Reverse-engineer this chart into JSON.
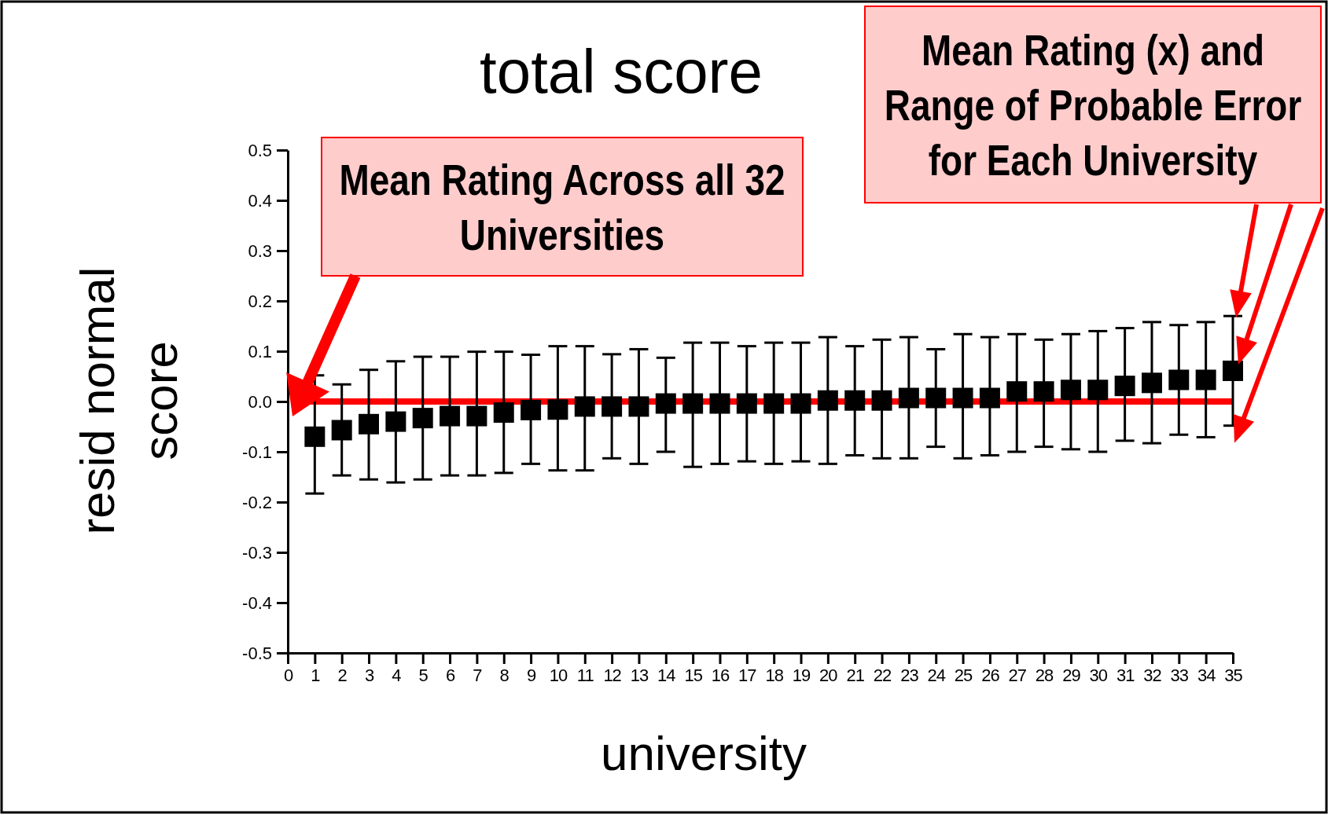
{
  "chart_data": {
    "type": "scatter",
    "title": "total score",
    "xlabel": "university",
    "ylabel": "resid normal score",
    "marker": "square",
    "grid": false,
    "xlim": [
      0,
      35
    ],
    "xticks": [
      0,
      1,
      2,
      3,
      4,
      5,
      6,
      7,
      8,
      9,
      10,
      11,
      12,
      13,
      14,
      15,
      16,
      17,
      18,
      19,
      20,
      21,
      22,
      23,
      24,
      25,
      26,
      27,
      28,
      29,
      30,
      31,
      32,
      33,
      34,
      35
    ],
    "ylim": [
      -0.5,
      0.5
    ],
    "yticks": [
      -0.5,
      -0.4,
      -0.3,
      -0.2,
      -0.1,
      {
        "value": 0,
        "label": "0.0"
      },
      0.1,
      0.2,
      0.3,
      0.4,
      0.5
    ],
    "x": [
      1,
      2,
      3,
      4,
      5,
      6,
      7,
      8,
      9,
      10,
      11,
      12,
      13,
      14,
      15,
      16,
      17,
      18,
      19,
      20,
      21,
      22,
      23,
      24,
      25,
      26,
      27,
      28,
      29,
      30,
      31,
      32,
      33,
      34,
      35
    ],
    "series": [
      {
        "color": "#000000",
        "values": [
          -0.07,
          -0.057,
          -0.045,
          -0.04,
          -0.033,
          -0.029,
          -0.029,
          -0.022,
          -0.017,
          -0.016,
          -0.01,
          -0.01,
          -0.01,
          -0.004,
          -0.004,
          -0.004,
          -0.004,
          -0.004,
          -0.004,
          0.002,
          0.002,
          0.002,
          0.007,
          0.007,
          0.007,
          0.007,
          0.02,
          0.02,
          0.023,
          0.023,
          0.031,
          0.037,
          0.043,
          0.043,
          0.061
        ],
        "errors": [
          [
            -0.183,
            0.052
          ],
          [
            -0.147,
            0.034
          ],
          [
            -0.155,
            0.063
          ],
          [
            -0.161,
            0.08
          ],
          [
            -0.155,
            0.089
          ],
          [
            -0.147,
            0.089
          ],
          [
            -0.147,
            0.099
          ],
          [
            -0.142,
            0.099
          ],
          [
            -0.124,
            0.093
          ],
          [
            -0.137,
            0.11
          ],
          [
            -0.137,
            0.11
          ],
          [
            -0.113,
            0.094
          ],
          [
            -0.124,
            0.104
          ],
          [
            -0.1,
            0.087
          ],
          [
            -0.13,
            0.117
          ],
          [
            -0.124,
            0.117
          ],
          [
            -0.119,
            0.11
          ],
          [
            -0.124,
            0.117
          ],
          [
            -0.119,
            0.117
          ],
          [
            -0.124,
            0.128
          ],
          [
            -0.107,
            0.11
          ],
          [
            -0.113,
            0.123
          ],
          [
            -0.113,
            0.128
          ],
          [
            -0.09,
            0.104
          ],
          [
            -0.113,
            0.134
          ],
          [
            -0.107,
            0.128
          ],
          [
            -0.1,
            0.134
          ],
          [
            -0.09,
            0.123
          ],
          [
            -0.095,
            0.134
          ],
          [
            -0.1,
            0.14
          ],
          [
            -0.078,
            0.146
          ],
          [
            -0.083,
            0.158
          ],
          [
            -0.066,
            0.152
          ],
          [
            -0.071,
            0.158
          ],
          [
            -0.048,
            0.17
          ]
        ]
      }
    ],
    "ref_lines": [
      {
        "axis": "y",
        "value": 0,
        "color": "#ff0000"
      }
    ],
    "annotations": [
      "Mean Rating Across all 32 Universities",
      "Mean Rating (x) and Range of Probable Error for Each University"
    ]
  }
}
